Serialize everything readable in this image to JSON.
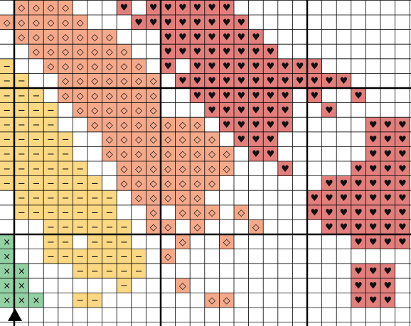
{
  "pattern": {
    "palette": {
      "◇": "#f5a98b",
      "♥": "#e27f7d",
      "−": "#fbd883",
      "×": "#93d0a3"
    },
    "rows": [
      [
        null,
        "◇",
        "◇",
        "◇",
        "◇",
        null,
        null,
        null,
        "♥",
        null,
        "♥",
        "♥",
        "♥",
        "♥",
        "♥",
        "♥",
        null,
        null,
        null,
        null,
        null,
        null,
        null,
        null,
        null,
        null,
        null,
        null
      ],
      [
        "◇",
        "◇",
        "◇",
        "◇",
        "◇",
        "◇",
        null,
        null,
        null,
        "♥",
        "♥",
        "♥",
        "♥",
        "♥",
        "♥",
        "♥",
        "♥",
        null,
        null,
        null,
        null,
        null,
        null,
        null,
        null,
        null,
        null,
        null
      ],
      [
        null,
        "◇",
        "◇",
        "◇",
        "◇",
        "◇",
        "◇",
        "◇",
        null,
        null,
        null,
        "♥",
        "♥",
        "♥",
        "♥",
        "♥",
        "♥",
        "♥",
        null,
        null,
        null,
        null,
        null,
        null,
        null,
        null,
        null,
        null
      ],
      [
        null,
        null,
        "◇",
        "◇",
        "◇",
        "◇",
        "◇",
        "◇",
        "◇",
        null,
        null,
        "♥",
        "♥",
        "♥",
        "♥",
        "♥",
        "♥",
        "♥",
        "♥",
        null,
        null,
        null,
        null,
        null,
        null,
        null,
        null,
        null
      ],
      [
        "−",
        null,
        null,
        "◇",
        "◇",
        "◇",
        "◇",
        "◇",
        "◇",
        "◇",
        null,
        "♥",
        null,
        "♥",
        "♥",
        "♥",
        "♥",
        "♥",
        "♥",
        "♥",
        "♥",
        "♥",
        null,
        null,
        null,
        null,
        null,
        null
      ],
      [
        "−",
        "−",
        null,
        null,
        "◇",
        "◇",
        "◇",
        "◇",
        "◇",
        "◇",
        "◇",
        null,
        "♥",
        "♥",
        "♥",
        "♥",
        "♥",
        "♥",
        "♥",
        "♥",
        "♥",
        "♥",
        "♥",
        "♥",
        null,
        null,
        null,
        null
      ],
      [
        "−",
        "−",
        "−",
        null,
        "◇",
        "◇",
        "◇",
        "◇",
        "◇",
        "◇",
        "◇",
        null,
        null,
        "♥",
        "♥",
        "♥",
        "♥",
        "♥",
        "♥",
        "♥",
        null,
        "♥",
        null,
        null,
        "♥",
        null,
        null,
        null
      ],
      [
        "−",
        "−",
        "−",
        "−",
        null,
        "◇",
        "◇",
        "◇",
        "◇",
        "◇",
        "◇",
        null,
        null,
        null,
        "♥",
        "♥",
        "♥",
        "♥",
        "♥",
        "♥",
        null,
        null,
        "♥",
        null,
        null,
        null,
        null,
        null
      ],
      [
        "−",
        "−",
        "−",
        "−",
        null,
        null,
        "◇",
        "◇",
        "◇",
        "◇",
        "◇",
        "◇",
        "◇",
        "◇",
        null,
        "♥",
        "♥",
        "♥",
        "♥",
        "♥",
        null,
        null,
        null,
        null,
        null,
        "♥",
        "♥",
        "♥"
      ],
      [
        "−",
        "−",
        "−",
        "−",
        "−",
        null,
        null,
        "◇",
        "◇",
        "◇",
        "◇",
        "◇",
        "◇",
        "◇",
        "◇",
        null,
        "♥",
        "♥",
        "♥",
        null,
        null,
        null,
        null,
        null,
        null,
        "♥",
        "♥",
        "♥"
      ],
      [
        "−",
        "−",
        "−",
        "−",
        "−",
        null,
        null,
        "◇",
        "◇",
        "◇",
        "◇",
        "◇",
        "◇",
        "◇",
        "◇",
        "◇",
        null,
        "♥",
        "♥",
        null,
        null,
        null,
        null,
        null,
        null,
        "♥",
        "♥",
        "♥"
      ],
      [
        "−",
        "−",
        "−",
        "−",
        "−",
        "−",
        null,
        null,
        "◇",
        "◇",
        "◇",
        "◇",
        "◇",
        "◇",
        "◇",
        "◇",
        null,
        null,
        null,
        "♥",
        null,
        null,
        null,
        null,
        "♥",
        "♥",
        "♥",
        "♥"
      ],
      [
        "−",
        "−",
        "−",
        "−",
        "−",
        "−",
        "−",
        null,
        "◇",
        "◇",
        "◇",
        "◇",
        "◇",
        "◇",
        "◇",
        null,
        null,
        null,
        null,
        null,
        null,
        null,
        "♥",
        "♥",
        "♥",
        "♥",
        "♥",
        "♥"
      ],
      [
        null,
        "−",
        "−",
        "−",
        "−",
        "−",
        "−",
        "−",
        null,
        "◇",
        "◇",
        "◇",
        "◇",
        "◇",
        null,
        null,
        null,
        null,
        null,
        null,
        null,
        "♥",
        "♥",
        "♥",
        "♥",
        "♥",
        "♥",
        "♥"
      ],
      [
        null,
        "−",
        "−",
        "−",
        "−",
        "−",
        "−",
        "−",
        null,
        null,
        "◇",
        null,
        "◇",
        "◇",
        "◇",
        null,
        "◇",
        null,
        null,
        null,
        null,
        "♥",
        "♥",
        "♥",
        "♥",
        "♥",
        "♥",
        "♥"
      ],
      [
        null,
        null,
        null,
        "−",
        "−",
        "−",
        "−",
        "−",
        "−",
        null,
        "◇",
        "◇",
        null,
        "◇",
        null,
        null,
        null,
        "◇",
        null,
        null,
        null,
        null,
        "♥",
        "♥",
        "♥",
        "♥",
        "♥",
        "♥"
      ],
      [
        "×",
        null,
        null,
        "−",
        "−",
        null,
        "−",
        "−",
        "−",
        null,
        null,
        null,
        "◇",
        null,
        null,
        "◇",
        null,
        null,
        null,
        null,
        null,
        null,
        null,
        null,
        "♥",
        "♥",
        "♥",
        "♥"
      ],
      [
        "×",
        null,
        null,
        "−",
        "−",
        "−",
        "−",
        "−",
        "−",
        "−",
        null,
        "◇",
        null,
        null,
        null,
        null,
        null,
        null,
        null,
        null,
        null,
        null,
        null,
        null,
        null,
        null,
        null,
        null
      ],
      [
        "×",
        "×",
        null,
        null,
        null,
        "−",
        "−",
        "−",
        "−",
        "−",
        null,
        null,
        null,
        null,
        null,
        null,
        null,
        null,
        null,
        null,
        null,
        null,
        null,
        null,
        "♥",
        "♥",
        "♥",
        null
      ],
      [
        "×",
        "×",
        null,
        null,
        null,
        null,
        null,
        null,
        "−",
        null,
        null,
        null,
        "◇",
        null,
        null,
        null,
        null,
        null,
        null,
        null,
        null,
        null,
        null,
        null,
        "♥",
        "♥",
        "♥",
        null
      ],
      [
        "×",
        "×",
        "×",
        null,
        null,
        "−",
        "−",
        null,
        null,
        null,
        null,
        null,
        null,
        null,
        "◇",
        "◇",
        null,
        null,
        null,
        null,
        null,
        null,
        null,
        null,
        "♥",
        "♥",
        "♥",
        null
      ]
    ]
  }
}
